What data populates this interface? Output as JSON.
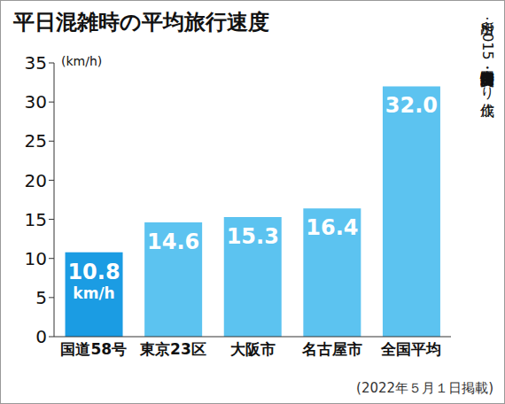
{
  "chart_data": {
    "type": "bar",
    "title": "平日混雑時の平均旅行速度",
    "y_label": "(km/h)",
    "categories": [
      "国道58号",
      "東京23区",
      "大阪市",
      "名古屋市",
      "全国平均"
    ],
    "values": [
      10.8,
      14.6,
      15.3,
      16.4,
      32.0
    ],
    "value_labels": [
      "10.8 km/h",
      "14.6",
      "15.3",
      "16.4",
      "32.0"
    ],
    "colors": [
      "#1b9ce3",
      "#5cc3f0",
      "#5cc3f0",
      "#5cc3f0",
      "#5cc3f0"
    ],
    "ylim": [
      0,
      35
    ],
    "yticks": [
      0,
      5,
      10,
      15,
      20,
      25,
      30,
      35
    ],
    "grid": false,
    "data_labels": true,
    "source": "出所：2015年度全国道路・街路交通情勢調査より作成",
    "note": "(2022年５月１日掲載)"
  }
}
